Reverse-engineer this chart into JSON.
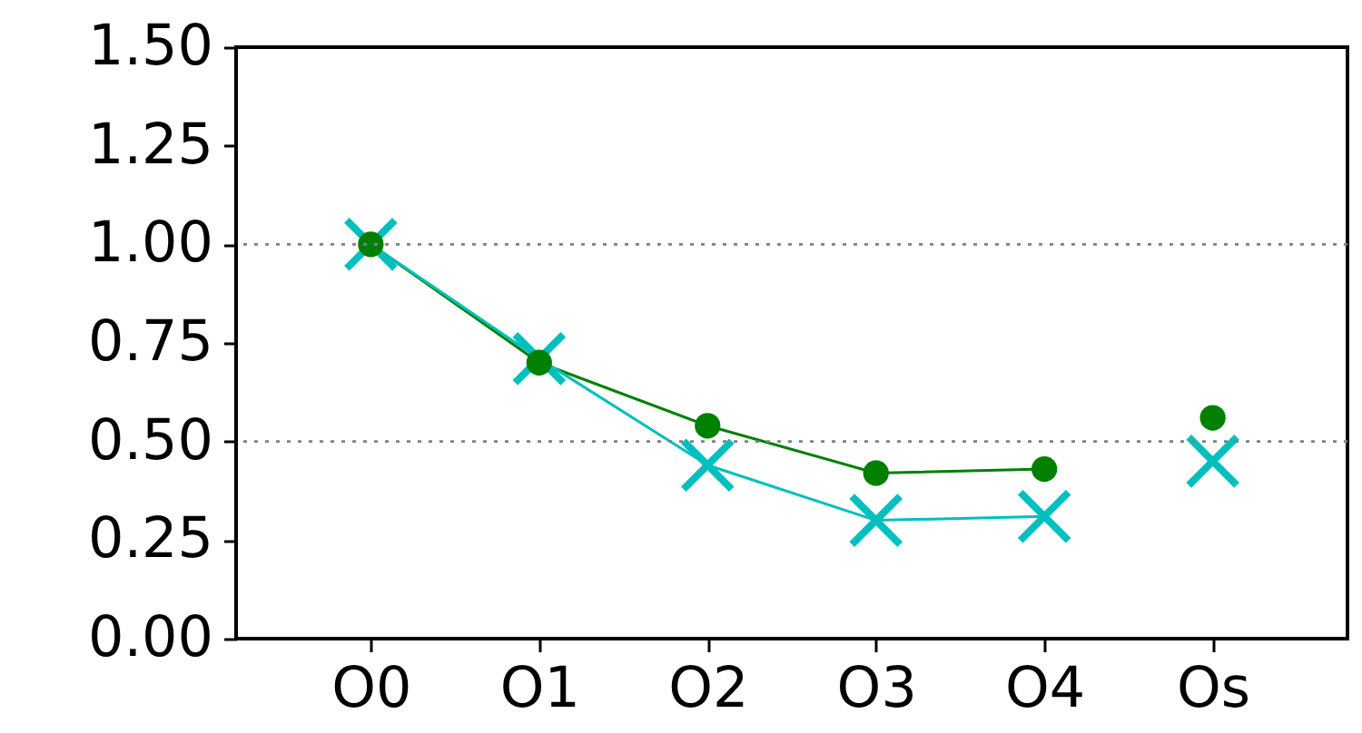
{
  "chart_data": {
    "type": "line",
    "categories": [
      "O0",
      "O1",
      "O2",
      "O3",
      "O4",
      "Os"
    ],
    "ylim": [
      0,
      1.5
    ],
    "yticks": [
      {
        "value": 0,
        "label": "0.00"
      },
      {
        "value": 0.25,
        "label": "0.25"
      },
      {
        "value": 0.5,
        "label": "0.50"
      },
      {
        "value": 0.75,
        "label": "0.75"
      },
      {
        "value": 1,
        "label": "1.00"
      },
      {
        "value": 1.25,
        "label": "1.25"
      },
      {
        "value": 1.5,
        "label": "1.50"
      }
    ],
    "ref_lines": [
      {
        "axis": "y",
        "value": 0.5,
        "color": "#808080",
        "line_style": "dotted"
      },
      {
        "axis": "y",
        "value": 1,
        "color": "#808080",
        "line_style": "dotted"
      }
    ],
    "series": [
      {
        "color": "#008000",
        "marker": "circle",
        "values": [
          1.0,
          0.7,
          0.54,
          0.42,
          0.43,
          null
        ]
      },
      {
        "color": "#00bfbf",
        "marker": "cross",
        "values": [
          1.0,
          0.71,
          0.44,
          0.3,
          0.31,
          null
        ]
      },
      {
        "type": "scatter",
        "color": "#008000",
        "marker": "circle",
        "x": [
          "Os"
        ],
        "values": [
          0.56
        ]
      },
      {
        "type": "scatter",
        "color": "#00bfbf",
        "marker": "cross",
        "x": [
          "Os"
        ],
        "values": [
          0.45
        ]
      }
    ]
  }
}
